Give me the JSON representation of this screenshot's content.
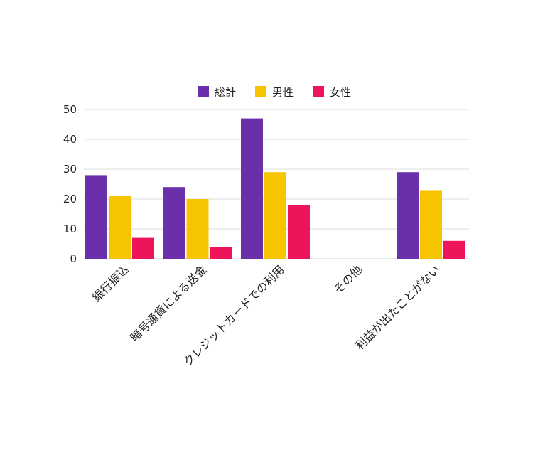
{
  "chart_data": {
    "type": "bar",
    "categories": [
      "銀行振込",
      "暗号通貨による送金",
      "クレジットカードでの利用",
      "その他",
      "利益が出たことがない"
    ],
    "series": [
      {
        "name": "総計",
        "color": "#6a2fab",
        "values": [
          28,
          24,
          47,
          0,
          29
        ]
      },
      {
        "name": "男性",
        "color": "#f6c400",
        "values": [
          21,
          20,
          29,
          0,
          23
        ]
      },
      {
        "name": "女性",
        "color": "#ee1459",
        "values": [
          7,
          4,
          18,
          0,
          6
        ]
      }
    ],
    "ylim": [
      0,
      50
    ],
    "yticks": [
      0,
      10,
      20,
      30,
      40,
      50
    ],
    "grid": true,
    "legend": "top-center",
    "title": "",
    "xlabel": "",
    "ylabel": ""
  }
}
